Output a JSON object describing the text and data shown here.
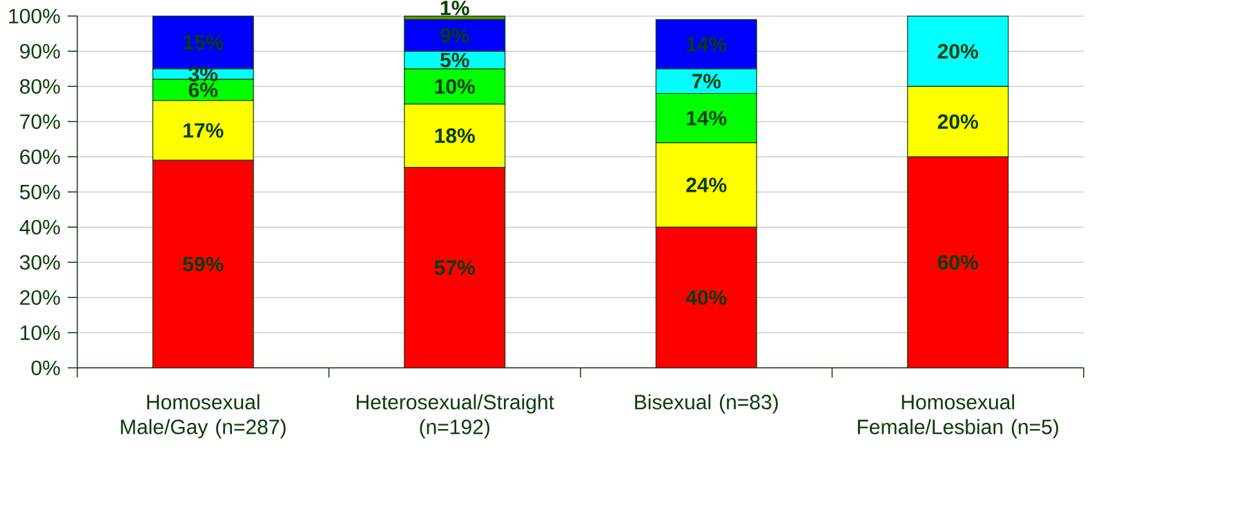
{
  "chart_data": {
    "type": "bar",
    "stacked": true,
    "categories": [
      "Homosexual Male/Gay (n=287)",
      "Heterosexual/Straight (n=192)",
      "Bisexual (n=83)",
      "Homosexual Female/Lesbian (n=5)"
    ],
    "series": [
      {
        "color": "#ff0000",
        "values": [
          59,
          57,
          40,
          60
        ],
        "value_labels": [
          "59%",
          "57%",
          "40%",
          "60%"
        ]
      },
      {
        "color": "#ffff00",
        "values": [
          17,
          18,
          24,
          20
        ],
        "value_labels": [
          "17%",
          "18%",
          "24%",
          "20%"
        ]
      },
      {
        "color": "#00ff00",
        "values": [
          6,
          10,
          14,
          null
        ],
        "value_labels": [
          "6%",
          "10%",
          "14%",
          null
        ]
      },
      {
        "color": "#00ffff",
        "values": [
          3,
          5,
          7,
          20
        ],
        "value_labels": [
          "3%",
          "5%",
          "7%",
          "20%"
        ]
      },
      {
        "color": "#0000ff",
        "values": [
          15,
          9,
          14,
          null
        ],
        "value_labels": [
          "15%",
          "9%",
          "14%",
          null
        ]
      },
      {
        "color": "#669900",
        "values": [
          null,
          1,
          null,
          null
        ],
        "value_labels": [
          null,
          "1%",
          null,
          null
        ]
      }
    ],
    "ylim": [
      0,
      100
    ],
    "yticks": [
      {
        "value": 0,
        "label": "0%"
      },
      {
        "value": 10,
        "label": "10%"
      },
      {
        "value": 20,
        "label": "20%"
      },
      {
        "value": 30,
        "label": "30%"
      },
      {
        "value": 40,
        "label": "40%"
      },
      {
        "value": 50,
        "label": "50%"
      },
      {
        "value": 60,
        "label": "60%"
      },
      {
        "value": 70,
        "label": "70%"
      },
      {
        "value": 80,
        "label": "80%"
      },
      {
        "value": 90,
        "label": "90%"
      },
      {
        "value": 100,
        "label": "100%"
      }
    ],
    "grid": "y"
  }
}
